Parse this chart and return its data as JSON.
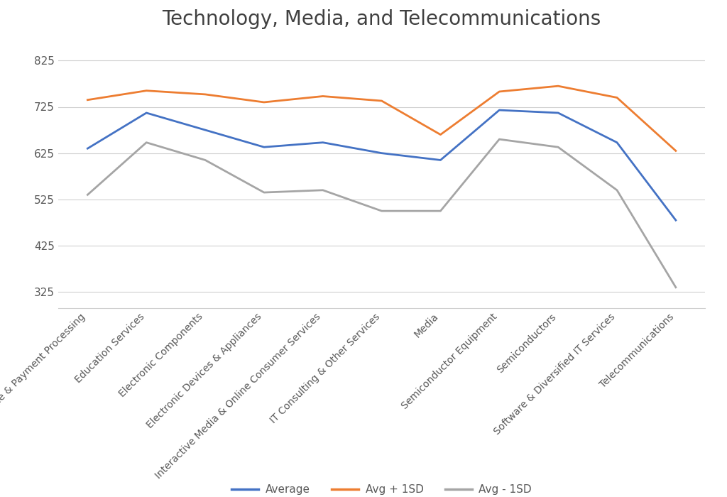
{
  "title": "Technology, Media, and Telecommunications",
  "categories": [
    "Digital Finance & Payment Processing",
    "Education Services",
    "Electronic Components",
    "Electronic Devices & Appliances",
    "Interactive Media & Online Consumer Services",
    "IT Consulting & Other Services",
    "Media",
    "Semiconductor Equipment",
    "Semiconductors",
    "Software & Diversified IT Services",
    "Telecommunications"
  ],
  "average": [
    635,
    712,
    675,
    638,
    648,
    625,
    610,
    718,
    712,
    648,
    480
  ],
  "avg_plus_1sd": [
    740,
    760,
    752,
    735,
    748,
    738,
    665,
    758,
    770,
    745,
    630
  ],
  "avg_minus_1sd": [
    535,
    648,
    610,
    540,
    545,
    500,
    500,
    655,
    638,
    545,
    335
  ],
  "avg_color": "#4472c4",
  "plus_color": "#ed7d31",
  "minus_color": "#a5a5a5",
  "ylim_min": 290,
  "ylim_max": 870,
  "yticks": [
    325,
    425,
    525,
    625,
    725,
    825
  ],
  "legend_labels": [
    "Average",
    "Avg + 1SD",
    "Avg - 1SD"
  ],
  "title_fontsize": 20,
  "line_width": 2.0,
  "background_color": "#ffffff",
  "grid_color": "#d0d0d0"
}
